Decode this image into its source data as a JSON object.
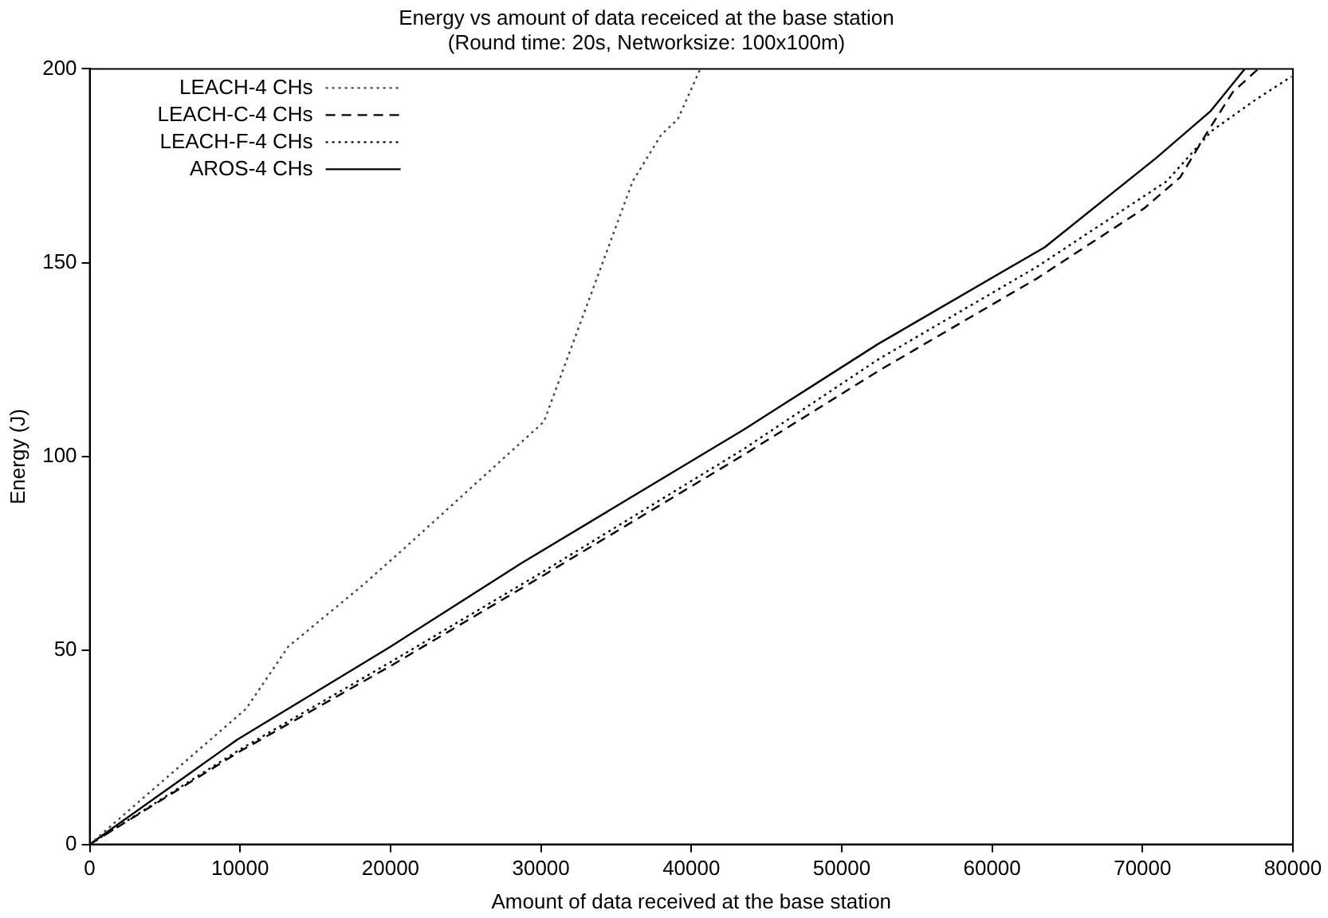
{
  "chart_data": {
    "type": "line",
    "title": "Energy vs amount of data receiced at the base station",
    "subtitle": "(Round time: 20s, Networksize: 100x100m)",
    "xlabel": "Amount of data received at the base station",
    "ylabel": "Energy (J)",
    "xlim": [
      0,
      80000
    ],
    "xticks": [
      0,
      10000,
      20000,
      30000,
      40000,
      50000,
      60000,
      70000,
      80000
    ],
    "ylim": [
      0,
      200
    ],
    "yticks": [
      0,
      50,
      100,
      150,
      200
    ],
    "grid": false,
    "legend": "top left",
    "marker": "none",
    "series": [
      {
        "name": "LEACH-4 CHs",
        "color": "#444444",
        "line_style": "dotted",
        "x": [
          0,
          10400,
          13200,
          18200,
          21100,
          30200,
          36100,
          38000,
          39100,
          40600
        ],
        "values": [
          0,
          35,
          51,
          67,
          77,
          109,
          171,
          183,
          187,
          200
        ]
      },
      {
        "name": "LEACH-C-4 CHs",
        "color": "#000000",
        "line_style": "dashed",
        "x": [
          0,
          10000,
          20000,
          30000,
          43500,
          52400,
          63000,
          70100,
          72500,
          74200,
          76000,
          77700
        ],
        "values": [
          0,
          24,
          46,
          69,
          100.5,
          122,
          146,
          164,
          172,
          183,
          194,
          200
        ]
      },
      {
        "name": "LEACH-F-4 CHs",
        "color": "#000000",
        "line_style": "dotted",
        "x": [
          0,
          10000,
          20000,
          30000,
          43500,
          52400,
          63000,
          71600,
          74600,
          77500,
          79900
        ],
        "values": [
          0,
          24.5,
          47,
          70,
          102,
          125,
          149,
          171,
          184,
          192,
          198
        ]
      },
      {
        "name": "AROS-4 CHs",
        "color": "#000000",
        "line_style": "solid",
        "x": [
          0,
          9800,
          20000,
          28700,
          43500,
          52400,
          63500,
          70900,
          74500,
          76800
        ],
        "values": [
          0,
          27,
          51,
          72.5,
          107,
          129,
          154,
          177,
          189,
          200
        ]
      }
    ]
  }
}
